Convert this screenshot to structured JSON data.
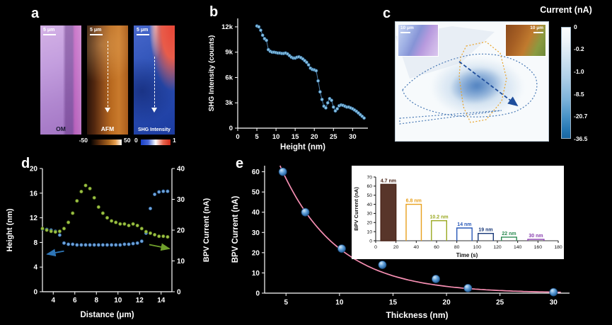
{
  "figure": {
    "bg": "#000000",
    "panel_labels": {
      "a": "a",
      "b": "b",
      "c": "c",
      "d": "d",
      "e": "e"
    }
  },
  "panel_a": {
    "images": [
      {
        "label": "OM",
        "scalebar": "5 μm"
      },
      {
        "label": "AFM",
        "scalebar": "5 μm"
      },
      {
        "label": "SHG Intensity",
        "scalebar": "5 μm"
      }
    ],
    "afm_colorbar": {
      "min": "-50",
      "max": "50"
    },
    "shg_colorbar": {
      "min": "0",
      "max": "1"
    }
  },
  "panel_c": {
    "colorbar_title": "Current (nA)",
    "colorbar_ticks": [
      "0",
      "-0.2",
      "-1.0",
      "-8.5",
      "-20.7",
      "-36.5"
    ],
    "insets": [
      {
        "scalebar": "10 μm"
      },
      {
        "scalebar": "10 μm"
      }
    ]
  },
  "chart_data": [
    {
      "id": "b",
      "type": "scatter",
      "title": "",
      "xlabel": "Height (nm)",
      "ylabel": "SHG Intensity (counts)",
      "xlim": [
        0,
        34
      ],
      "ylim": [
        0,
        13000
      ],
      "xticks": [
        0,
        5,
        10,
        15,
        20,
        25,
        30
      ],
      "yticks": [
        0,
        3000,
        6000,
        9000,
        12000
      ],
      "ytick_labels": [
        "0",
        "3k",
        "6k",
        "9k",
        "12k"
      ],
      "dot_fill": "#86bede",
      "dot_stroke": "#2a6496",
      "x": [
        5,
        5.5,
        6,
        6.5,
        7,
        7.5,
        8,
        8.5,
        9,
        9.5,
        10,
        10.5,
        11,
        11.5,
        12,
        12.5,
        13,
        13.5,
        14,
        14.5,
        15,
        15.5,
        16,
        16.5,
        17,
        17.5,
        18,
        18.5,
        19,
        19.5,
        20,
        20.5,
        21,
        21.5,
        22,
        22.5,
        23,
        23.5,
        24,
        24.5,
        25,
        25.5,
        26,
        26.5,
        27,
        27.5,
        28,
        28.5,
        29,
        29.5,
        30,
        30.5,
        31,
        31.5,
        32,
        32.5,
        33
      ],
      "y": [
        12100,
        12000,
        11600,
        11000,
        10600,
        10400,
        9300,
        9100,
        9000,
        9000,
        8950,
        8900,
        8900,
        8850,
        8850,
        8900,
        8800,
        8600,
        8400,
        8300,
        8300,
        8400,
        8450,
        8350,
        8200,
        8000,
        7800,
        7500,
        7100,
        6950,
        6900,
        6800,
        5600,
        4300,
        3400,
        2600,
        2400,
        3000,
        3500,
        3300,
        2500,
        2050,
        2300,
        2650,
        2750,
        2700,
        2600,
        2500,
        2500,
        2400,
        2300,
        2150,
        2000,
        1800,
        1600,
        1400,
        1200
      ]
    },
    {
      "id": "d",
      "type": "scatter-dual-axis",
      "xlabel": "Distance (μm)",
      "ylabel_left": "Height (nm)",
      "ylabel_right": "BPV Current (nA)",
      "xlim": [
        3,
        15
      ],
      "ylim_left": [
        0,
        20
      ],
      "ylim_right": [
        0,
        40
      ],
      "xticks": [
        4,
        6,
        8,
        10,
        12,
        14
      ],
      "yticks_left": [
        0,
        4,
        8,
        12,
        16,
        20
      ],
      "yticks_right": [
        0,
        10,
        20,
        30,
        40
      ],
      "x": [
        3,
        3.4,
        3.8,
        4.2,
        4.6,
        5,
        5.4,
        5.8,
        6.2,
        6.6,
        7,
        7.4,
        7.8,
        8.2,
        8.6,
        9,
        9.4,
        9.8,
        10.2,
        10.6,
        11,
        11.4,
        11.8,
        12.2,
        12.6,
        13,
        13.4,
        13.8,
        14.2,
        14.6
      ],
      "series": [
        {
          "name": "Height",
          "axis": "left",
          "fill": "#6fa3d8",
          "stroke": "#2a5f9e",
          "y": [
            10.2,
            10.1,
            10,
            9.8,
            9.2,
            7.9,
            7.7,
            7.7,
            7.6,
            7.6,
            7.6,
            7.6,
            7.6,
            7.6,
            7.6,
            7.6,
            7.6,
            7.6,
            7.6,
            7.7,
            7.7,
            7.8,
            7.9,
            8.2,
            9.5,
            13.5,
            15.8,
            16.2,
            16.3,
            16.3
          ]
        },
        {
          "name": "BPV Current",
          "axis": "right",
          "fill": "#9cc044",
          "stroke": "#5a7a1e",
          "y": [
            20.5,
            20,
            19.6,
            19.4,
            19.6,
            20.5,
            22.5,
            25.5,
            29.5,
            32.5,
            34.5,
            33.5,
            30.5,
            27.5,
            25.5,
            24,
            23,
            22.5,
            22,
            22,
            21.5,
            22,
            21.5,
            20.5,
            19.5,
            19,
            18.5,
            18,
            18,
            17.8
          ]
        }
      ],
      "arrows": [
        {
          "axis": "left",
          "from": [
            5.0,
            6.6
          ],
          "to": [
            3.45,
            6.1
          ],
          "color": "#2e75b6"
        },
        {
          "axis": "right",
          "from": [
            12.9,
            15.3
          ],
          "to": [
            14.75,
            14.0
          ],
          "color": "#70a02c"
        }
      ]
    },
    {
      "id": "e",
      "type": "scatter",
      "xlabel": "Thickness (nm)",
      "ylabel": "BPV Current (nA)",
      "xlim": [
        3,
        31.5
      ],
      "ylim": [
        0,
        63
      ],
      "xticks": [
        5,
        10,
        15,
        20,
        25,
        30
      ],
      "yticks": [
        0,
        10,
        20,
        30,
        40,
        50,
        60
      ],
      "points": {
        "x": [
          4.7,
          6.8,
          10.2,
          14,
          19,
          22,
          30
        ],
        "y": [
          60,
          40,
          22,
          14,
          7,
          2.5,
          0.5
        ]
      },
      "fit": {
        "type": "exponential-decay",
        "A": 145.8,
        "tau": 5.29,
        "color": "#f78fb3"
      }
    },
    {
      "id": "e_inset",
      "type": "pulse",
      "xlabel": "Time (s)",
      "ylabel": "BPV Current (nA)",
      "xlim": [
        0,
        180
      ],
      "ylim": [
        0,
        70
      ],
      "xticks": [
        0,
        20,
        40,
        60,
        80,
        100,
        120,
        140,
        160,
        180
      ],
      "yticks": [
        0,
        10,
        20,
        30,
        40,
        50,
        60,
        70
      ],
      "pulses": [
        {
          "label": "4.7 nm",
          "t_on": 5,
          "t_off": 20,
          "amplitude": 62,
          "color": "#4a2418",
          "filled": true
        },
        {
          "label": "6.8 nm",
          "t_on": 30,
          "t_off": 45,
          "amplitude": 40,
          "color": "#e8a01c",
          "filled": false
        },
        {
          "label": "10.2 nm",
          "t_on": 55,
          "t_off": 70,
          "amplitude": 22,
          "color": "#9aa820",
          "filled": false
        },
        {
          "label": "14 nm",
          "t_on": 80,
          "t_off": 95,
          "amplitude": 14,
          "color": "#2858b8",
          "filled": false
        },
        {
          "label": "19 nm",
          "t_on": 101,
          "t_off": 116,
          "amplitude": 8,
          "color": "#183878",
          "filled": false
        },
        {
          "label": "22 nm",
          "t_on": 124,
          "t_off": 139,
          "amplitude": 4,
          "color": "#2a8a50",
          "filled": false
        },
        {
          "label": "30 nm",
          "t_on": 150,
          "t_off": 166,
          "amplitude": 1.5,
          "color": "#8a40b0",
          "filled": false
        }
      ]
    }
  ]
}
